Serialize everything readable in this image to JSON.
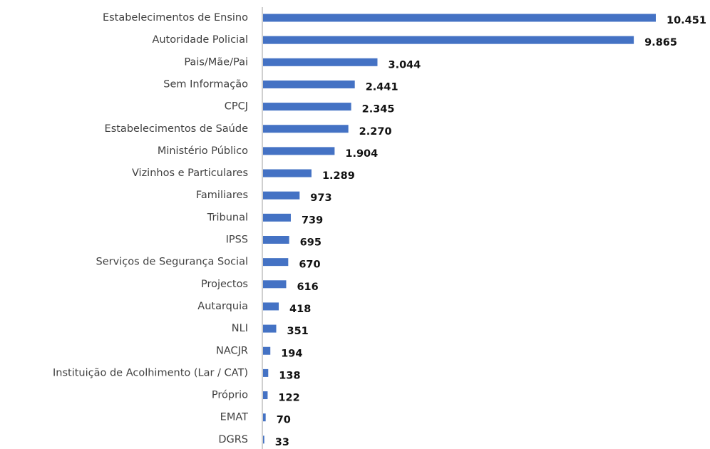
{
  "chart_data": {
    "type": "bar",
    "orientation": "horizontal",
    "color": "#4472c4",
    "categories": [
      "Estabelecimentos de Ensino",
      "Autoridade Policial",
      "Pais/Mãe/Pai",
      "Sem Informação",
      "CPCJ",
      "Estabelecimentos de Saúde",
      "Ministério Público",
      "Vizinhos e Particulares",
      "Familiares",
      "Tribunal",
      "IPSS",
      "Serviços de Segurança Social",
      "Projectos",
      "Autarquia",
      "NLI",
      "NACJR",
      "Instituição de Acolhimento (Lar / CAT)",
      "Próprio",
      "EMAT",
      "DGRS"
    ],
    "values": [
      10451,
      9865,
      3044,
      2441,
      2345,
      2270,
      1904,
      1289,
      973,
      739,
      695,
      670,
      616,
      418,
      351,
      194,
      138,
      122,
      70,
      33
    ],
    "value_labels": [
      "10.451",
      "9.865",
      "3.044",
      "2.441",
      "2.345",
      "2.270",
      "1.904",
      "1.289",
      "973",
      "739",
      "695",
      "670",
      "616",
      "418",
      "351",
      "194",
      "138",
      "122",
      "70",
      "33"
    ]
  }
}
